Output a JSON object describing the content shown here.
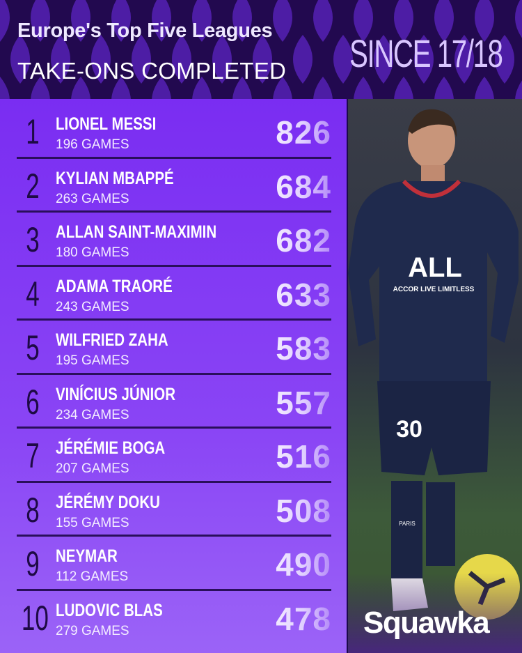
{
  "header": {
    "title": "Europe's Top Five Leagues",
    "subtitle": "TAKE-ONS COMPLETED",
    "period": "SINCE 17/18"
  },
  "colors": {
    "header_bg": "#22094f",
    "panel": "#7a2df2",
    "rank_text": "#1e0a45",
    "divider": "#2a0f5c"
  },
  "rows": [
    {
      "rank": "1",
      "name": "LIONEL MESSI",
      "games": "196 GAMES",
      "value": "826"
    },
    {
      "rank": "2",
      "name": "KYLIAN MBAPPÉ",
      "games": "263 GAMES",
      "value": "684"
    },
    {
      "rank": "3",
      "name": "ALLAN SAINT-MAXIMIN",
      "games": "180 GAMES",
      "value": "682"
    },
    {
      "rank": "4",
      "name": "ADAMA TRAORÉ",
      "games": "243 GAMES",
      "value": "633"
    },
    {
      "rank": "5",
      "name": "WILFRIED ZAHA",
      "games": "195 GAMES",
      "value": "583"
    },
    {
      "rank": "6",
      "name": "VINÍCIUS JÚNIOR",
      "games": "234 GAMES",
      "value": "557"
    },
    {
      "rank": "7",
      "name": "JÉRÉMIE BOGA",
      "games": "207 GAMES",
      "value": "516"
    },
    {
      "rank": "8",
      "name": "JÉRÉMY DOKU",
      "games": "155 GAMES",
      "value": "508"
    },
    {
      "rank": "9",
      "name": "NEYMAR",
      "games": "112 GAMES",
      "value": "490"
    },
    {
      "rank": "10",
      "name": "LUDOVIC BLAS",
      "games": "279 GAMES",
      "value": "478"
    }
  ],
  "photo": {
    "kit_text": "ALL",
    "sponsor": "ACCOR LIVE LIMITLESS",
    "shirt_number": "30",
    "sock_text": "PARIS"
  },
  "brand": "Squawka"
}
